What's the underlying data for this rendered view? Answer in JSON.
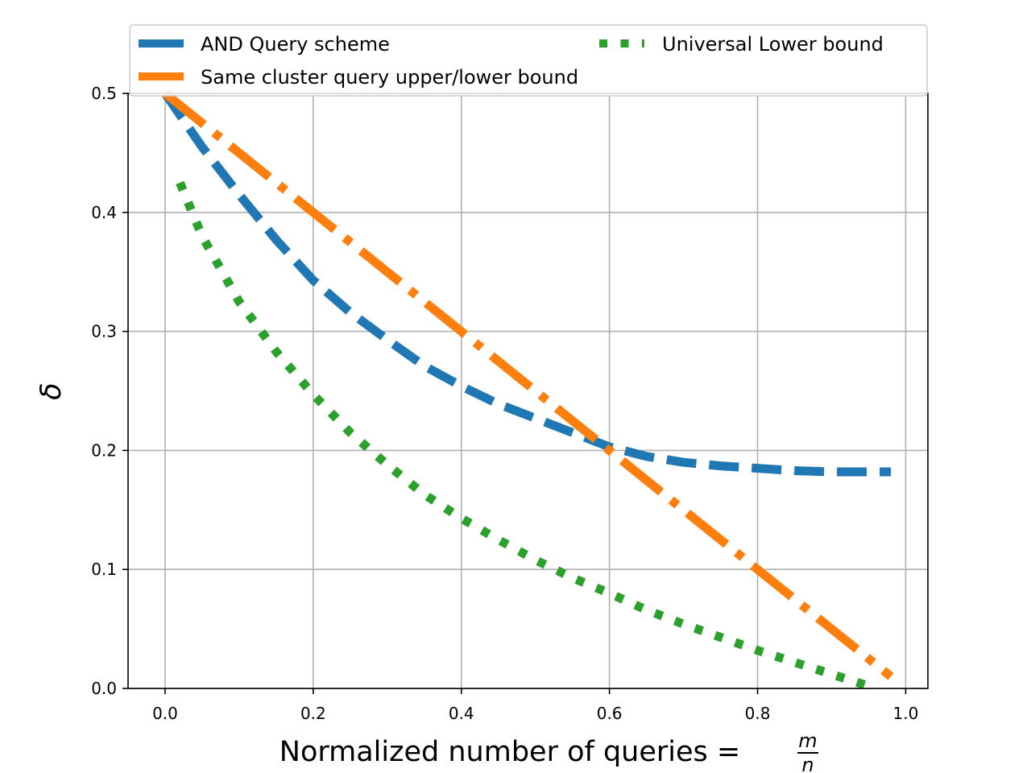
{
  "chart_data": {
    "type": "line",
    "title": "",
    "xlabel": "Normalized number of queries = ",
    "xlabel_fraction": {
      "numerator": "m",
      "denominator": "n"
    },
    "ylabel": "δ",
    "xlim": [
      -0.05,
      1.03
    ],
    "ylim": [
      0.0,
      0.5
    ],
    "grid": true,
    "xticks": [
      0.0,
      0.2,
      0.4,
      0.6,
      0.8,
      1.0
    ],
    "xtick_labels": [
      "0.0",
      "0.2",
      "0.4",
      "0.6",
      "0.8",
      "1.0"
    ],
    "yticks": [
      0.0,
      0.1,
      0.2,
      0.3,
      0.4,
      0.5
    ],
    "ytick_labels": [
      "0.0",
      "0.1",
      "0.2",
      "0.3",
      "0.4",
      "0.5"
    ],
    "legend_position": "top",
    "series": [
      {
        "name": "AND Query scheme",
        "color": "#1f77b4",
        "style": "dashed",
        "x": [
          0.0,
          0.05,
          0.1,
          0.15,
          0.2,
          0.25,
          0.3,
          0.35,
          0.4,
          0.45,
          0.5,
          0.55,
          0.6,
          0.65,
          0.7,
          0.75,
          0.8,
          0.85,
          0.9,
          0.95,
          0.98
        ],
        "values": [
          0.5,
          0.455,
          0.415,
          0.377,
          0.343,
          0.316,
          0.293,
          0.271,
          0.254,
          0.239,
          0.227,
          0.215,
          0.203,
          0.195,
          0.19,
          0.187,
          0.185,
          0.183,
          0.182,
          0.182,
          0.182
        ]
      },
      {
        "name": "Same cluster query upper/lower bound",
        "color": "#ff7f0e",
        "style": "dashdot",
        "x": [
          0.0,
          0.98
        ],
        "values": [
          0.5,
          0.01
        ]
      },
      {
        "name": "Universal Lower bound",
        "color": "#2ca02c",
        "style": "dotted",
        "x": [
          0.02,
          0.05,
          0.1,
          0.15,
          0.2,
          0.25,
          0.3,
          0.35,
          0.4,
          0.45,
          0.5,
          0.55,
          0.6,
          0.65,
          0.7,
          0.75,
          0.8,
          0.85,
          0.9,
          0.96
        ],
        "values": [
          0.425,
          0.38,
          0.325,
          0.283,
          0.247,
          0.215,
          0.188,
          0.163,
          0.143,
          0.125,
          0.108,
          0.093,
          0.08,
          0.066,
          0.054,
          0.043,
          0.032,
          0.022,
          0.012,
          0.0
        ]
      }
    ]
  }
}
